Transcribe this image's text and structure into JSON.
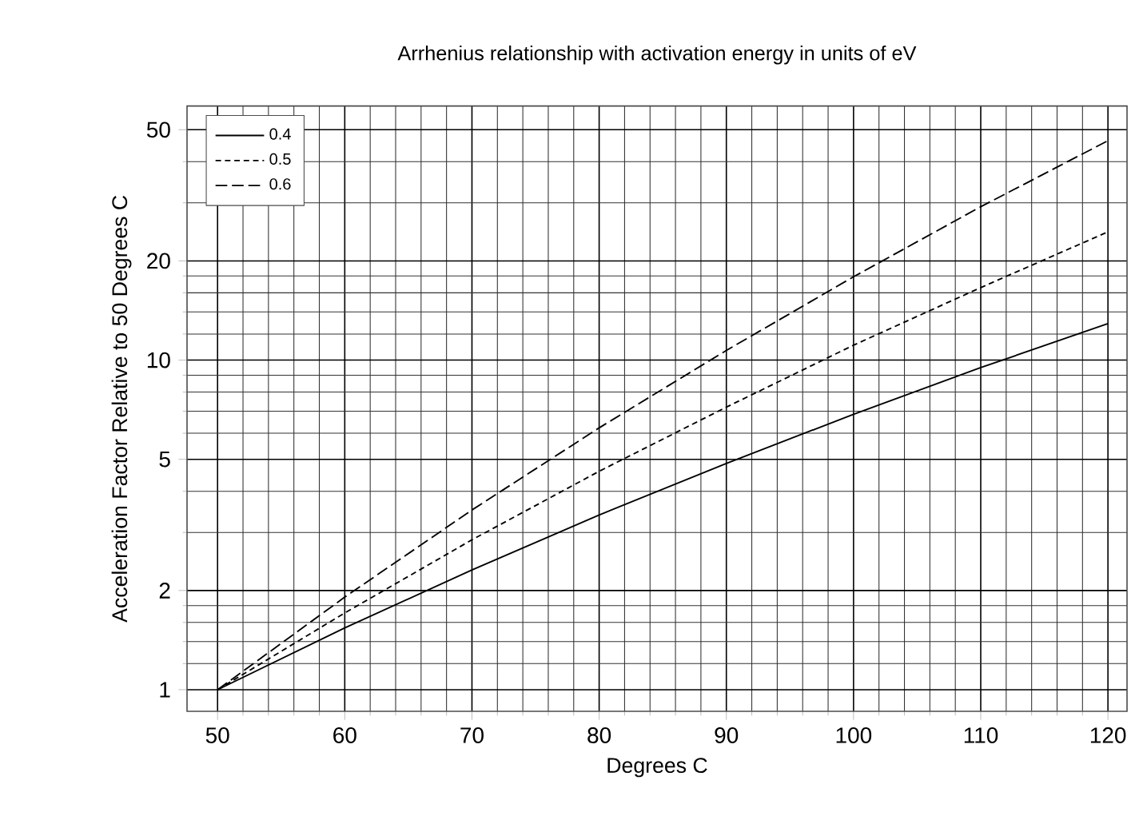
{
  "chart_data": {
    "type": "line",
    "title": "Arrhenius relationship with activation energy in units of eV",
    "xlabel": "Degrees C",
    "ylabel": "Acceleration Factor Relative to 50 Degrees C",
    "x": [
      50,
      60,
      70,
      80,
      90,
      100,
      110,
      120
    ],
    "series": [
      {
        "name": "0.4",
        "color": "#000000",
        "line_style": "solid",
        "values": [
          1,
          1.54,
          2.31,
          3.39,
          4.86,
          6.85,
          9.49,
          12.9
        ]
      },
      {
        "name": "0.5",
        "color": "#000000",
        "line_style": "dotted",
        "values": [
          1,
          1.71,
          2.85,
          4.6,
          7.2,
          11.1,
          16.6,
          24.5
        ]
      },
      {
        "name": "0.6",
        "color": "#000000",
        "line_style": "dashed",
        "values": [
          1,
          1.91,
          3.51,
          6.23,
          10.7,
          17.9,
          29.2,
          46.3
        ]
      }
    ],
    "xlim": [
      47.6,
      121.5
    ],
    "ylim": [
      0.86,
      59
    ],
    "xticks": [
      50,
      60,
      70,
      80,
      90,
      100,
      110,
      120
    ],
    "yticks": [
      1,
      2,
      5,
      10,
      20,
      50
    ],
    "log": "y",
    "grid": true,
    "legend": "top left",
    "marker": "none"
  }
}
